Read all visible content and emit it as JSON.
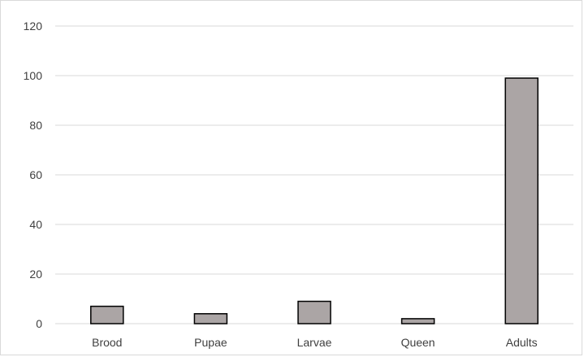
{
  "chart_data": {
    "type": "bar",
    "categories": [
      "Brood",
      "Pupae",
      "Larvae",
      "Queen",
      "Adults"
    ],
    "values": [
      7,
      4,
      9,
      2,
      99
    ],
    "title": "",
    "xlabel": "",
    "ylabel": "",
    "ylim": [
      0,
      120
    ],
    "yticks": [
      "0",
      "20",
      "40",
      "60",
      "80",
      "100",
      "120"
    ],
    "grid": true,
    "legend": "none",
    "colors": {
      "bar_fill": "#aba5a5",
      "bar_stroke": "#000000",
      "grid": "#d9d9d9",
      "text": "#404040"
    }
  }
}
